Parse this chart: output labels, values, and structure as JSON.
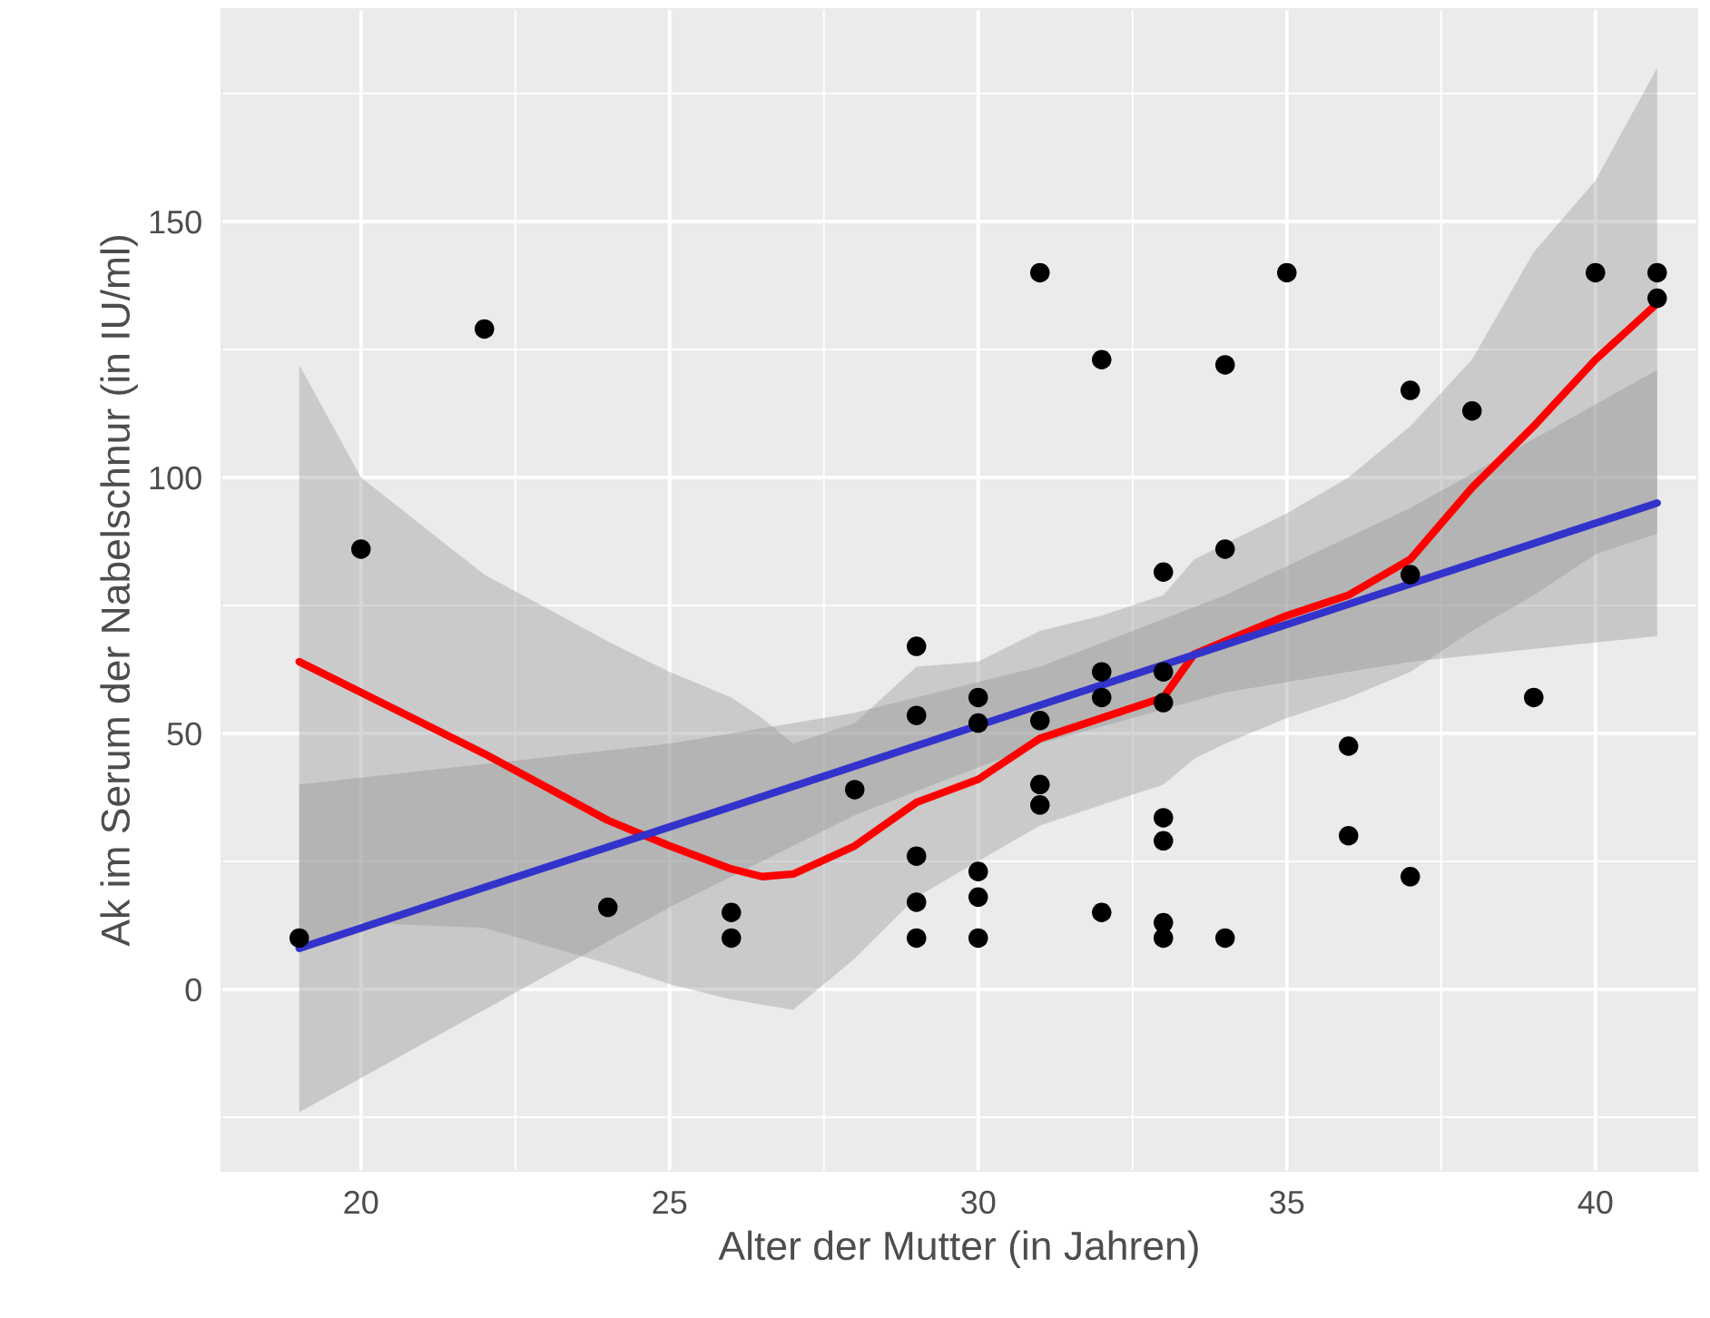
{
  "chart_data": {
    "type": "scatter",
    "xlabel": "Alter der Mutter (in Jahren)",
    "ylabel": "Ak im Serum der Nabelschnur (in IU/ml)",
    "xlim": [
      17.74,
      41.65
    ],
    "ylim": [
      -35.5,
      191.5
    ],
    "xticks": [
      20,
      25,
      30,
      35,
      40
    ],
    "yticks": [
      0,
      50,
      100,
      150
    ],
    "grid": true,
    "series": [
      {
        "type": "scatter",
        "marker": "circle",
        "color": "#000000",
        "x": [
          19,
          20,
          22,
          24,
          26,
          26,
          28,
          29,
          29,
          29,
          29,
          29,
          30,
          30,
          30,
          30,
          30,
          31,
          31,
          31,
          31,
          32,
          32,
          32,
          32,
          33,
          33,
          33,
          33,
          33,
          33,
          33,
          34,
          34,
          34,
          35,
          36,
          36,
          37,
          37,
          37,
          38,
          39,
          40,
          41,
          41
        ],
        "values": [
          10,
          86,
          129,
          16,
          15,
          10,
          39,
          67,
          53.5,
          26,
          17,
          10,
          57,
          52,
          23,
          18,
          10,
          140,
          52.5,
          40,
          36,
          123,
          62,
          57,
          15,
          81.5,
          62,
          56,
          33.5,
          29,
          13,
          10,
          122,
          86,
          10,
          140,
          47.5,
          30,
          117,
          81,
          22,
          113,
          57,
          140,
          140,
          135
        ]
      },
      {
        "type": "line",
        "color": "#ff0000",
        "line_style": "solid",
        "x": [
          19,
          20,
          22,
          24,
          25,
          26,
          26.5,
          27,
          28,
          29,
          30,
          31,
          32,
          33,
          33.5,
          34,
          35,
          36,
          37,
          38,
          39,
          40,
          41
        ],
        "values": [
          64,
          58,
          46,
          33,
          28,
          23.5,
          22,
          22.5,
          28,
          36.5,
          41,
          49,
          53,
          57,
          65.5,
          68,
          73,
          77,
          84,
          98,
          110,
          123,
          134
        ],
        "upper": [
          122,
          100,
          81,
          68,
          62,
          57,
          53,
          48,
          52,
          63,
          64,
          70,
          73,
          77,
          84,
          87,
          93,
          100,
          110,
          123,
          144,
          158,
          180
        ],
        "lower": [
          8,
          13,
          12,
          5,
          1,
          -2,
          -3,
          -4,
          6,
          18,
          25,
          32,
          36,
          40,
          45,
          48,
          53,
          57,
          62,
          70,
          77,
          85,
          89
        ]
      },
      {
        "type": "line",
        "color": "#3333cc",
        "line_style": "solid",
        "x": [
          19,
          22,
          25,
          28,
          31,
          34,
          37,
          41
        ],
        "values": [
          8,
          19.9,
          31.7,
          43.6,
          55.5,
          67.3,
          79.2,
          95
        ],
        "upper": [
          40,
          44,
          48,
          54,
          63,
          77,
          94,
          121
        ],
        "lower": [
          -24,
          -4,
          16,
          34,
          48,
          58,
          64,
          69
        ]
      }
    ]
  }
}
